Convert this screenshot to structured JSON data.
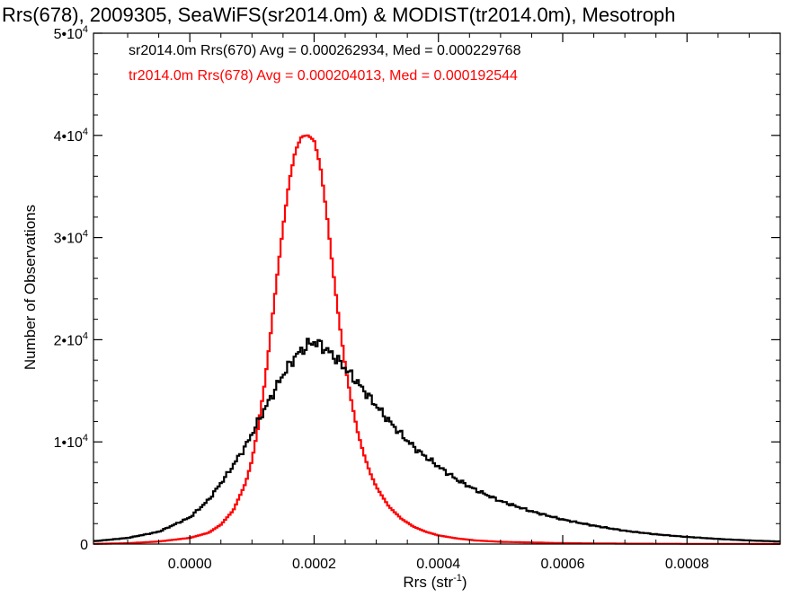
{
  "chart_data": {
    "type": "step-histogram",
    "title": "Rrs(678), 2009305, SeaWiFS(sr2014.0m) & MODIST(tr2014.0m), Mesotroph",
    "xlabel_main": "Rrs (str",
    "xlabel_sup": "-1",
    "xlabel_close": ")",
    "ylabel": "Number of Observations",
    "xlim": [
      -0.000155,
      0.00095
    ],
    "ylim": [
      0,
      50000
    ],
    "x_ticks": [
      0.0,
      0.0002,
      0.0004,
      0.0006,
      0.0008
    ],
    "x_tick_labels": [
      "0.0000",
      "0.0002",
      "0.0004",
      "0.0006",
      "0.0008"
    ],
    "y_ticks": [
      {
        "value": 0,
        "base": "0",
        "exp": ""
      },
      {
        "value": 10000,
        "base": "1•10",
        "exp": "4"
      },
      {
        "value": 20000,
        "base": "2•10",
        "exp": "4"
      },
      {
        "value": 30000,
        "base": "3•10",
        "exp": "4"
      },
      {
        "value": 40000,
        "base": "4•10",
        "exp": "4"
      },
      {
        "value": 50000,
        "base": "5•10",
        "exp": "4"
      }
    ],
    "legend": [
      {
        "text": "sr2014.0m Rrs(670) Avg = 0.000262934, Med = 0.000229768",
        "color": "#000000"
      },
      {
        "text": "tr2014.0m Rrs(678) Avg = 0.000204013, Med = 0.000192544",
        "color": "#ff0000"
      }
    ],
    "series": [
      {
        "color": "#000000",
        "points": [
          [
            -0.00015,
            300
          ],
          [
            -0.0001,
            600
          ],
          [
            -5e-05,
            1200
          ],
          [
            0.0,
            2600
          ],
          [
            3e-05,
            4300
          ],
          [
            6e-05,
            6800
          ],
          [
            9e-05,
            9600
          ],
          [
            0.00011,
            12000
          ],
          [
            0.00013,
            14300
          ],
          [
            0.00015,
            16600
          ],
          [
            0.00017,
            18400
          ],
          [
            0.00019,
            19500
          ],
          [
            0.0002,
            19800
          ],
          [
            0.00021,
            19500
          ],
          [
            0.00023,
            18500
          ],
          [
            0.00025,
            17200
          ],
          [
            0.00027,
            15800
          ],
          [
            0.00029,
            14300
          ],
          [
            0.00031,
            12800
          ],
          [
            0.00033,
            11400
          ],
          [
            0.00035,
            10100
          ],
          [
            0.00037,
            9000
          ],
          [
            0.0004,
            7600
          ],
          [
            0.00043,
            6300
          ],
          [
            0.00046,
            5300
          ],
          [
            0.0005,
            4200
          ],
          [
            0.00055,
            3200
          ],
          [
            0.0006,
            2400
          ],
          [
            0.00065,
            1800
          ],
          [
            0.0007,
            1300
          ],
          [
            0.00075,
            950
          ],
          [
            0.0008,
            700
          ],
          [
            0.00085,
            500
          ],
          [
            0.0009,
            350
          ],
          [
            0.00095,
            250
          ]
        ]
      },
      {
        "color": "#ff0000",
        "points": [
          [
            -0.00015,
            20
          ],
          [
            -0.0001,
            80
          ],
          [
            -5e-05,
            250
          ],
          [
            0.0,
            600
          ],
          [
            3e-05,
            1100
          ],
          [
            5e-05,
            1900
          ],
          [
            7e-05,
            3300
          ],
          [
            9e-05,
            6000
          ],
          [
            0.0001,
            8200
          ],
          [
            0.00011,
            11500
          ],
          [
            0.00012,
            15500
          ],
          [
            0.00013,
            20500
          ],
          [
            0.00014,
            26000
          ],
          [
            0.00015,
            31000
          ],
          [
            0.00016,
            35500
          ],
          [
            0.00017,
            38500
          ],
          [
            0.00018,
            39900
          ],
          [
            0.00019,
            40000
          ],
          [
            0.0002,
            39500
          ],
          [
            0.00021,
            37000
          ],
          [
            0.00022,
            32500
          ],
          [
            0.00023,
            27000
          ],
          [
            0.00024,
            22000
          ],
          [
            0.00025,
            17500
          ],
          [
            0.00026,
            14000
          ],
          [
            0.00027,
            11000
          ],
          [
            0.00028,
            8800
          ],
          [
            0.00029,
            7000
          ],
          [
            0.0003,
            5600
          ],
          [
            0.00032,
            3700
          ],
          [
            0.00034,
            2500
          ],
          [
            0.00036,
            1700
          ],
          [
            0.00038,
            1200
          ],
          [
            0.0004,
            850
          ],
          [
            0.00043,
            550
          ],
          [
            0.00046,
            350
          ],
          [
            0.0005,
            220
          ],
          [
            0.0006,
            90
          ],
          [
            0.0007,
            40
          ],
          [
            0.0008,
            20
          ],
          [
            0.00095,
            10
          ]
        ]
      }
    ]
  }
}
